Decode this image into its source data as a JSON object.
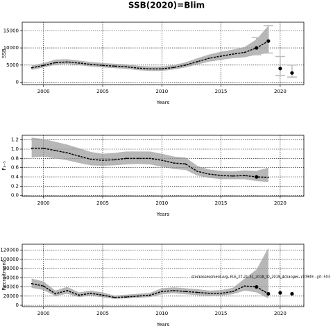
{
  "chart_data": [
    {
      "type": "line",
      "title": "SSB(2020)=Blim",
      "ylabel": "SSB",
      "xlabel": "Years",
      "x": [
        1999,
        2000,
        2001,
        2002,
        2003,
        2004,
        2005,
        2006,
        2007,
        2008,
        2009,
        2010,
        2011,
        2012,
        2013,
        2014,
        2015,
        2016,
        2017,
        2018,
        2019
      ],
      "values": [
        4200,
        4900,
        5700,
        5900,
        5600,
        5200,
        4900,
        4700,
        4500,
        4100,
        3900,
        3900,
        4300,
        5000,
        6000,
        7000,
        7600,
        8200,
        8700,
        10000,
        12000
      ],
      "lower": [
        3600,
        4300,
        5100,
        5300,
        5000,
        4600,
        4300,
        4100,
        3900,
        3500,
        3300,
        3300,
        3700,
        4300,
        5200,
        6000,
        6500,
        7000,
        7300,
        8000,
        8500
      ],
      "upper": [
        4900,
        5600,
        6600,
        6700,
        6300,
        5900,
        5600,
        5400,
        5200,
        4800,
        4600,
        4600,
        5000,
        5800,
        7000,
        8100,
        8900,
        9500,
        10300,
        12500,
        16500
      ],
      "points": {
        "x": [
          2018,
          2019,
          2020,
          2021
        ],
        "values": [
          10000,
          12000,
          4000,
          2700
        ],
        "low": [
          8000,
          8500,
          2000,
          1500
        ],
        "high": [
          13000,
          16500,
          7500,
          5000
        ]
      },
      "color": "#000000",
      "band_color": "#999999",
      "error_color": "#bbbbbb",
      "xlim": [
        1998.2,
        2022
      ],
      "xticks": [
        2000,
        2005,
        2010,
        2015,
        2020
      ],
      "ylim": [
        -700,
        17500
      ],
      "yticks": [
        0,
        5000,
        10000,
        15000
      ],
      "grid": true
    },
    {
      "type": "line",
      "ylabel": "F₃₋₅",
      "xlabel": "Years",
      "x": [
        1999,
        2000,
        2001,
        2002,
        2003,
        2004,
        2005,
        2006,
        2007,
        2008,
        2009,
        2010,
        2011,
        2012,
        2013,
        2014,
        2015,
        2016,
        2017,
        2018,
        2019
      ],
      "values": [
        1.02,
        1.02,
        0.97,
        0.92,
        0.85,
        0.78,
        0.76,
        0.77,
        0.8,
        0.8,
        0.8,
        0.76,
        0.7,
        0.68,
        0.52,
        0.46,
        0.43,
        0.42,
        0.43,
        0.4,
        0.39
      ],
      "lower": [
        0.82,
        0.84,
        0.8,
        0.76,
        0.7,
        0.65,
        0.64,
        0.65,
        0.67,
        0.68,
        0.67,
        0.62,
        0.57,
        0.55,
        0.43,
        0.38,
        0.35,
        0.35,
        0.35,
        0.31,
        0.29
      ],
      "upper": [
        1.25,
        1.22,
        1.16,
        1.1,
        1.02,
        0.94,
        0.9,
        0.92,
        0.95,
        0.95,
        0.95,
        0.9,
        0.84,
        0.82,
        0.64,
        0.56,
        0.53,
        0.52,
        0.54,
        0.53,
        0.6
      ],
      "points": {
        "x": [
          2018
        ],
        "values": [
          0.4
        ]
      },
      "color": "#000000",
      "band_color": "#999999",
      "xlim": [
        1998.2,
        2022
      ],
      "xticks": [
        2000,
        2005,
        2010,
        2015,
        2020
      ],
      "ylim": [
        -0.02,
        1.3
      ],
      "yticks": [
        {
          "value": 0,
          "label": "0.0"
        },
        0.2,
        0.4,
        0.6,
        0.8,
        {
          "value": 1,
          "label": "1.0"
        },
        1.2
      ],
      "grid": true
    },
    {
      "type": "line",
      "ylabel": "Recruitment",
      "xlabel": "Years",
      "annotation": "stockassessment.org, FLE_27.21-32_2018_IO_2019_4changes, r10949 , git: 503",
      "x": [
        1999,
        2000,
        2001,
        2002,
        2003,
        2004,
        2005,
        2006,
        2007,
        2008,
        2009,
        2010,
        2011,
        2012,
        2013,
        2014,
        2015,
        2016,
        2017,
        2018,
        2019
      ],
      "values": [
        47000,
        42000,
        25000,
        32000,
        22000,
        26000,
        22000,
        17000,
        18000,
        20000,
        22000,
        30000,
        32000,
        30000,
        28000,
        26000,
        26000,
        30000,
        42000,
        40000,
        25000
      ],
      "lower": [
        38000,
        33000,
        20000,
        25000,
        18000,
        21000,
        17000,
        14000,
        15000,
        16000,
        18000,
        24000,
        26000,
        24000,
        22000,
        21000,
        21000,
        24000,
        32000,
        28000,
        15000
      ],
      "upper": [
        58000,
        52000,
        32000,
        40000,
        28000,
        32000,
        28000,
        21000,
        23000,
        25000,
        27000,
        37000,
        39000,
        37000,
        35000,
        32000,
        33000,
        38000,
        58000,
        78000,
        125000
      ],
      "points": {
        "x": [
          2018,
          2019,
          2020,
          2021
        ],
        "values": [
          40000,
          25000,
          27000,
          25000
        ]
      },
      "color": "#000000",
      "band_color": "#999999",
      "xlim": [
        1998.2,
        2022
      ],
      "xticks": [
        2000,
        2005,
        2010,
        2015,
        2020
      ],
      "ylim": [
        -3000,
        133000
      ],
      "yticks": [
        0,
        20000,
        40000,
        60000,
        80000,
        100000,
        120000
      ],
      "grid": true
    }
  ]
}
